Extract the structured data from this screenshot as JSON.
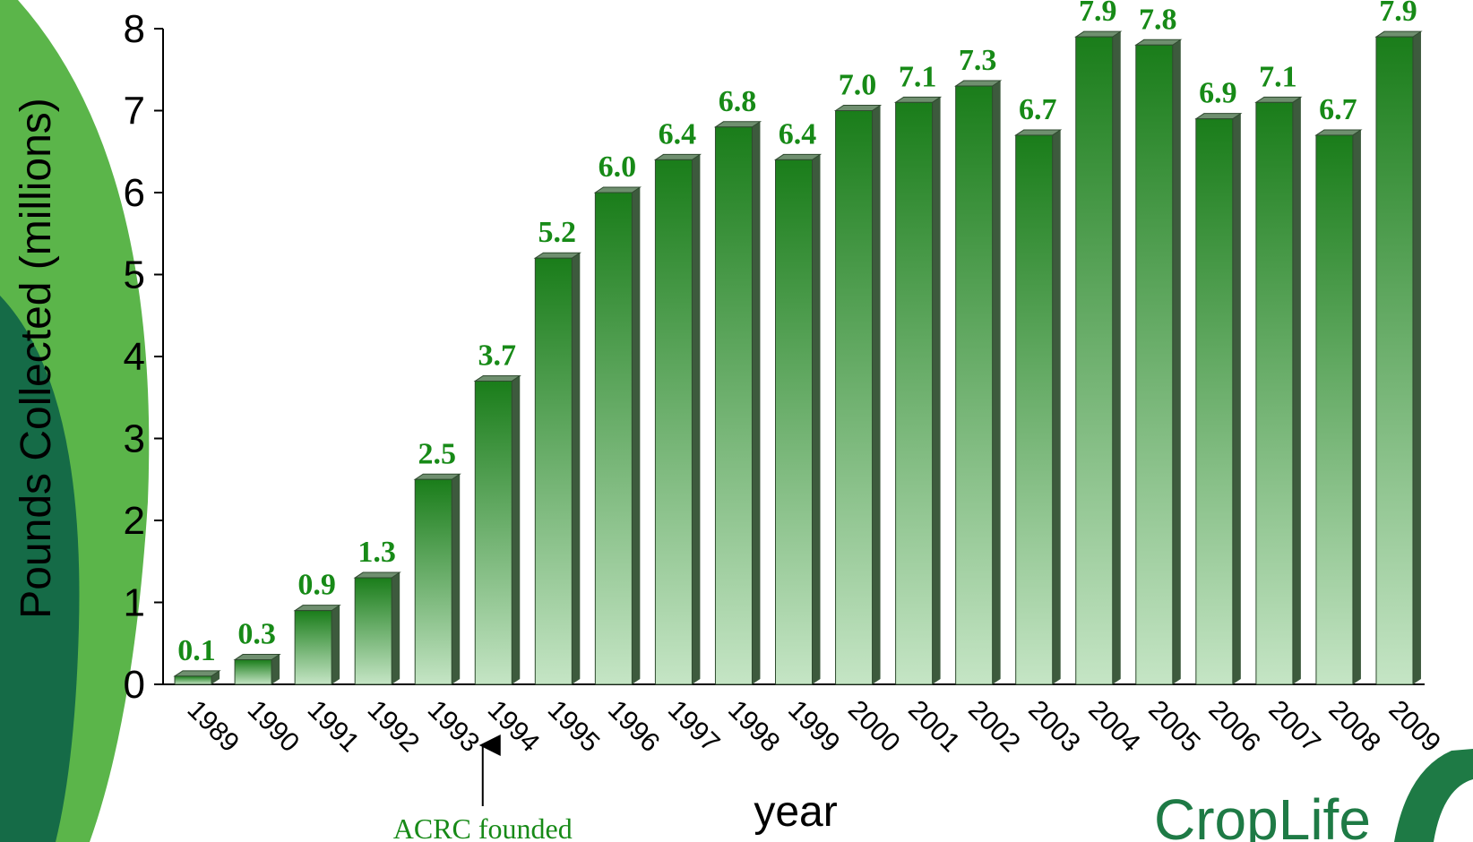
{
  "colors": {
    "bar_top": "#1a7d1a",
    "bar_bottom": "#c5e5c5",
    "bar_side": "#3d5a3d",
    "label": "#178a17",
    "swoosh_light": "#5bb54a",
    "swoosh_dark": "#156b47",
    "brand": "#1e7a45"
  },
  "chart_data": {
    "type": "bar",
    "title": "",
    "xlabel": "year",
    "ylabel": "Pounds Collected (millions)",
    "ylim": [
      0,
      8
    ],
    "yticks": [
      "0",
      "1",
      "2",
      "3",
      "4",
      "5",
      "6",
      "7",
      "8"
    ],
    "grid": false,
    "categories": [
      "1989",
      "1990",
      "1991",
      "1992",
      "1993",
      "1994",
      "1995",
      "1996",
      "1997",
      "1998",
      "1999",
      "2000",
      "2001",
      "2002",
      "2003",
      "2004",
      "2005",
      "2006",
      "2007",
      "2008",
      "2009"
    ],
    "values": [
      0.1,
      0.3,
      0.9,
      1.3,
      2.5,
      3.7,
      5.2,
      6.0,
      6.4,
      6.8,
      6.4,
      7.0,
      7.1,
      7.3,
      6.7,
      7.9,
      7.8,
      6.9,
      7.1,
      6.7,
      7.9
    ],
    "labels": [
      "0.1",
      "0.3",
      "0.9",
      "1.3",
      "2.5",
      "3.7",
      "5.2",
      "6.0",
      "6.4",
      "6.8",
      "6.4",
      "7.0",
      "7.1",
      "7.3",
      "6.7",
      "7.9",
      "7.8",
      "6.9",
      "7.1",
      "6.7",
      "7.9"
    ],
    "annotation": {
      "text": "ACRC founded",
      "category": "1994"
    }
  },
  "brand": {
    "logo_text": "CropLife"
  }
}
